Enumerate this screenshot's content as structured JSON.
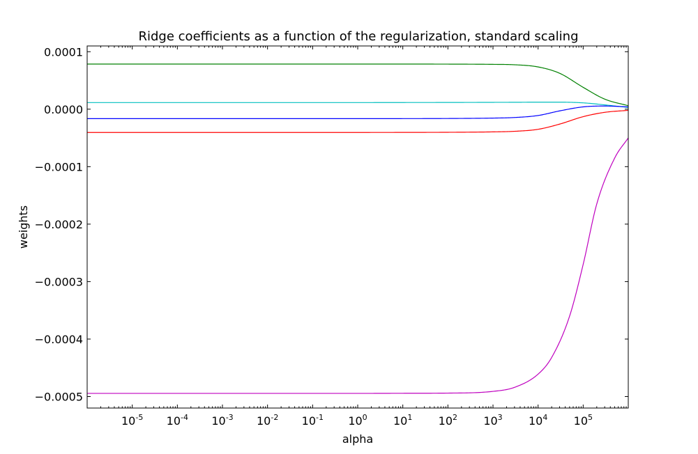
{
  "chart_data": {
    "type": "line",
    "title": "Ridge coefficients as a function of the regularization, standard scaling",
    "xlabel": "alpha",
    "ylabel": "weights",
    "xscale": "log",
    "xlim": [
      1e-06,
      1000000.0
    ],
    "ylim": [
      -0.00052,
      0.00011
    ],
    "xticks": [
      {
        "value": 1e-05,
        "base": "10",
        "exp": "-5"
      },
      {
        "value": 0.0001,
        "base": "10",
        "exp": "-4"
      },
      {
        "value": 0.001,
        "base": "10",
        "exp": "-3"
      },
      {
        "value": 0.01,
        "base": "10",
        "exp": "-2"
      },
      {
        "value": 0.1,
        "base": "10",
        "exp": "-1"
      },
      {
        "value": 1,
        "base": "10",
        "exp": "0"
      },
      {
        "value": 10,
        "base": "10",
        "exp": "1"
      },
      {
        "value": 100,
        "base": "10",
        "exp": "2"
      },
      {
        "value": 1000,
        "base": "10",
        "exp": "3"
      },
      {
        "value": 10000,
        "base": "10",
        "exp": "4"
      },
      {
        "value": 100000,
        "base": "10",
        "exp": "5"
      }
    ],
    "yticks": [
      {
        "value": 0.0001,
        "label": "0.0001"
      },
      {
        "value": 0.0,
        "label": "0.0000"
      },
      {
        "value": -0.0001,
        "label": "−0.0001"
      },
      {
        "value": -0.0002,
        "label": "−0.0002"
      },
      {
        "value": -0.0003,
        "label": "−0.0003"
      },
      {
        "value": -0.0004,
        "label": "−0.0004"
      },
      {
        "value": -0.0005,
        "label": "−0.0005"
      }
    ],
    "grid": false,
    "legend": "none",
    "series": [
      {
        "color": "#008000",
        "x": [
          1e-06,
          1e-05,
          0.0001,
          0.001,
          0.01,
          0.1,
          1,
          10,
          100,
          1000,
          3000,
          10000,
          30000,
          100000,
          300000,
          1000000
        ],
        "y": [
          7.85e-05,
          7.85e-05,
          7.85e-05,
          7.85e-05,
          7.85e-05,
          7.85e-05,
          7.85e-05,
          7.85e-05,
          7.84e-05,
          7.8e-05,
          7.73e-05,
          7.35e-05,
          6.25e-05,
          3.8e-05,
          1.75e-05,
          6e-06
        ]
      },
      {
        "color": "#00bfbf",
        "x": [
          1e-06,
          1e-05,
          0.0001,
          0.001,
          0.01,
          0.1,
          1,
          10,
          100,
          1000,
          3000,
          10000,
          30000,
          100000,
          300000,
          1000000
        ],
        "y": [
          1.15e-05,
          1.15e-05,
          1.15e-05,
          1.15e-05,
          1.15e-05,
          1.15e-05,
          1.15e-05,
          1.16e-05,
          1.17e-05,
          1.19e-05,
          1.2e-05,
          1.22e-05,
          1.22e-05,
          1.1e-05,
          7.5e-06,
          3e-06
        ]
      },
      {
        "color": "#0000ff",
        "x": [
          1e-06,
          1e-05,
          0.0001,
          0.001,
          0.01,
          0.1,
          1,
          10,
          100,
          1000,
          3000,
          10000,
          30000,
          100000,
          300000,
          1000000
        ],
        "y": [
          -1.65e-05,
          -1.65e-05,
          -1.65e-05,
          -1.65e-05,
          -1.65e-05,
          -1.65e-05,
          -1.65e-05,
          -1.64e-05,
          -1.62e-05,
          -1.55e-05,
          -1.45e-05,
          -1.1e-05,
          -3e-06,
          4e-06,
          5.5e-06,
          4e-06
        ]
      },
      {
        "color": "#ff0000",
        "x": [
          1e-06,
          1e-05,
          0.0001,
          0.001,
          0.01,
          0.1,
          1,
          10,
          100,
          1000,
          3000,
          10000,
          30000,
          100000,
          300000,
          1000000
        ],
        "y": [
          -4.05e-05,
          -4.05e-05,
          -4.05e-05,
          -4.05e-05,
          -4.05e-05,
          -4.05e-05,
          -4.05e-05,
          -4.04e-05,
          -4.02e-05,
          -3.95e-05,
          -3.85e-05,
          -3.5e-05,
          -2.6e-05,
          -1.3e-05,
          -5.5e-06,
          -2e-06
        ]
      },
      {
        "color": "#bf00bf",
        "x": [
          1e-06,
          1e-05,
          0.0001,
          0.001,
          0.01,
          0.1,
          1,
          10,
          100,
          1000,
          3000,
          10000,
          20000,
          50000,
          100000,
          200000,
          500000,
          1000000
        ],
        "y": [
          -0.0004945,
          -0.0004945,
          -0.0004945,
          -0.0004945,
          -0.0004945,
          -0.0004945,
          -0.0004945,
          -0.0004943,
          -0.000494,
          -0.000491,
          -0.000484,
          -0.000461,
          -0.000432,
          -0.00036,
          -0.00027,
          -0.000165,
          -8.5e-05,
          -5e-05
        ]
      }
    ]
  }
}
